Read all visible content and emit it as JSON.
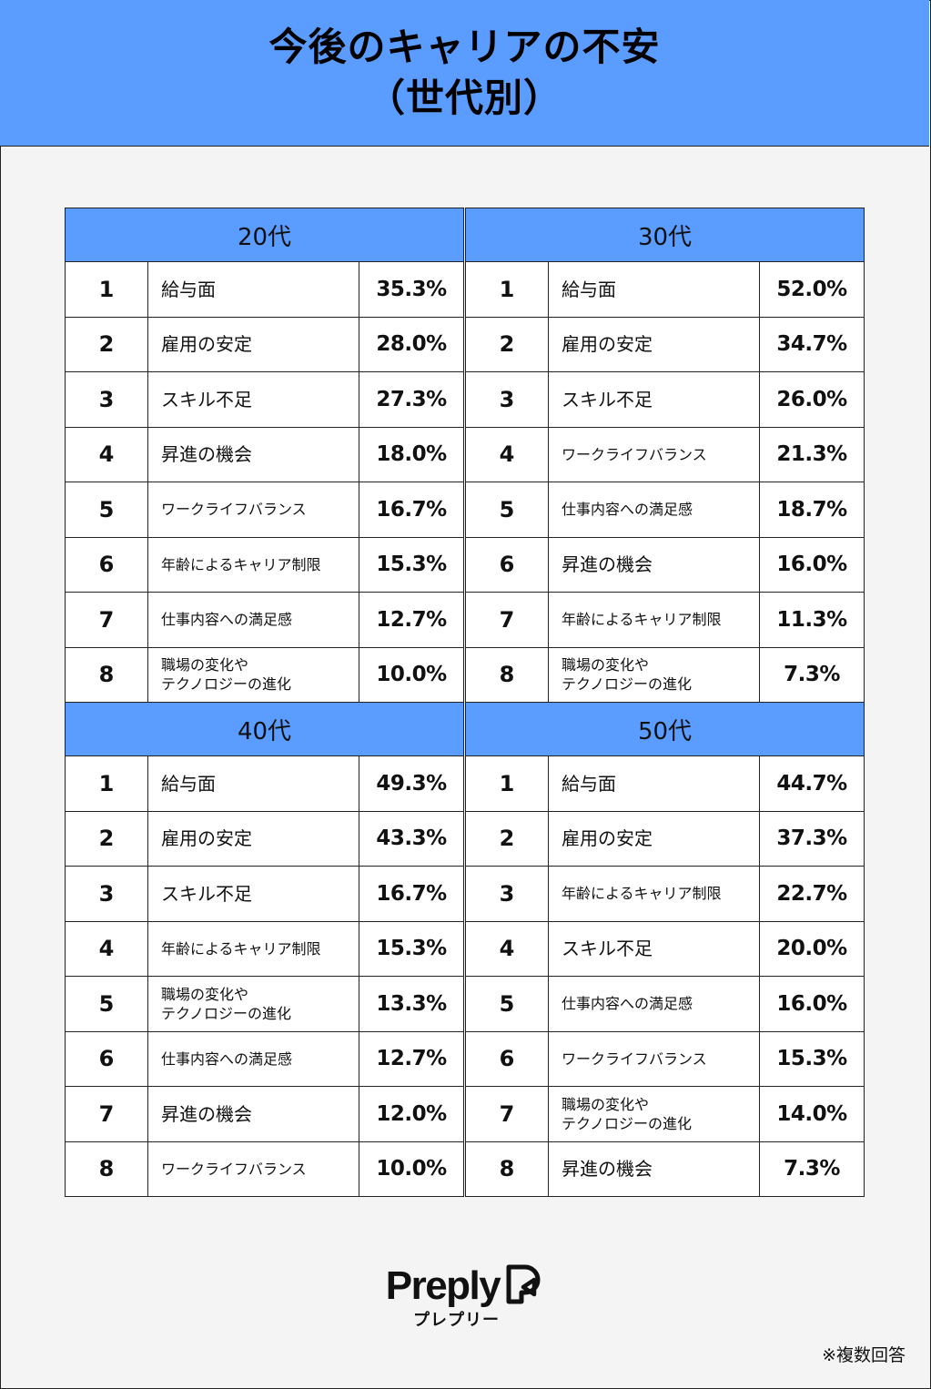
{
  "header": {
    "title_line1": "今後のキャリアの不安",
    "title_line2": "（世代別）"
  },
  "colors": {
    "accent": "#5a9cff",
    "background": "#f4f4f4"
  },
  "chart_data": [
    {
      "type": "table",
      "title": "20代",
      "columns": [
        "rank",
        "item",
        "percent"
      ],
      "rows": [
        {
          "rank": "1",
          "label": "給与面",
          "value": "35.3%"
        },
        {
          "rank": "2",
          "label": "雇用の安定",
          "value": "28.0%"
        },
        {
          "rank": "3",
          "label": "スキル不足",
          "value": "27.3%"
        },
        {
          "rank": "4",
          "label": "昇進の機会",
          "value": "18.0%"
        },
        {
          "rank": "5",
          "label": "ワークライフバランス",
          "value": "16.7%"
        },
        {
          "rank": "6",
          "label": "年齢によるキャリア制限",
          "value": "15.3%"
        },
        {
          "rank": "7",
          "label": "仕事内容への満足感",
          "value": "12.7%"
        },
        {
          "rank": "8",
          "label": "職場の変化や\nテクノロジーの進化",
          "value": "10.0%"
        }
      ]
    },
    {
      "type": "table",
      "title": "30代",
      "columns": [
        "rank",
        "item",
        "percent"
      ],
      "rows": [
        {
          "rank": "1",
          "label": "給与面",
          "value": "52.0%"
        },
        {
          "rank": "2",
          "label": "雇用の安定",
          "value": "34.7%"
        },
        {
          "rank": "3",
          "label": "スキル不足",
          "value": "26.0%"
        },
        {
          "rank": "4",
          "label": "ワークライフバランス",
          "value": "21.3%"
        },
        {
          "rank": "5",
          "label": "仕事内容への満足感",
          "value": "18.7%"
        },
        {
          "rank": "6",
          "label": "昇進の機会",
          "value": "16.0%"
        },
        {
          "rank": "7",
          "label": "年齢によるキャリア制限",
          "value": "11.3%"
        },
        {
          "rank": "8",
          "label": "職場の変化や\nテクノロジーの進化",
          "value": "7.3%"
        }
      ]
    },
    {
      "type": "table",
      "title": "40代",
      "columns": [
        "rank",
        "item",
        "percent"
      ],
      "rows": [
        {
          "rank": "1",
          "label": "給与面",
          "value": "49.3%"
        },
        {
          "rank": "2",
          "label": "雇用の安定",
          "value": "43.3%"
        },
        {
          "rank": "3",
          "label": "スキル不足",
          "value": "16.7%"
        },
        {
          "rank": "4",
          "label": "年齢によるキャリア制限",
          "value": "15.3%"
        },
        {
          "rank": "5",
          "label": "職場の変化や\nテクノロジーの進化",
          "value": "13.3%"
        },
        {
          "rank": "6",
          "label": "仕事内容への満足感",
          "value": "12.7%"
        },
        {
          "rank": "7",
          "label": "昇進の機会",
          "value": "12.0%"
        },
        {
          "rank": "8",
          "label": "ワークライフバランス",
          "value": "10.0%"
        }
      ]
    },
    {
      "type": "table",
      "title": "50代",
      "columns": [
        "rank",
        "item",
        "percent"
      ],
      "rows": [
        {
          "rank": "1",
          "label": "給与面",
          "value": "44.7%"
        },
        {
          "rank": "2",
          "label": "雇用の安定",
          "value": "37.3%"
        },
        {
          "rank": "3",
          "label": "年齢によるキャリア制限",
          "value": "22.7%"
        },
        {
          "rank": "4",
          "label": "スキル不足",
          "value": "20.0%"
        },
        {
          "rank": "5",
          "label": "仕事内容への満足感",
          "value": "16.0%"
        },
        {
          "rank": "6",
          "label": "ワークライフバランス",
          "value": "15.3%"
        },
        {
          "rank": "7",
          "label": "職場の変化や\nテクノロジーの進化",
          "value": "14.0%"
        },
        {
          "rank": "8",
          "label": "昇進の機会",
          "value": "7.3%"
        }
      ]
    }
  ],
  "logo": {
    "wordmark": "Preply",
    "subtitle": "プレプリー",
    "icon": "preply-logo-icon"
  },
  "footnote": "※複数回答"
}
